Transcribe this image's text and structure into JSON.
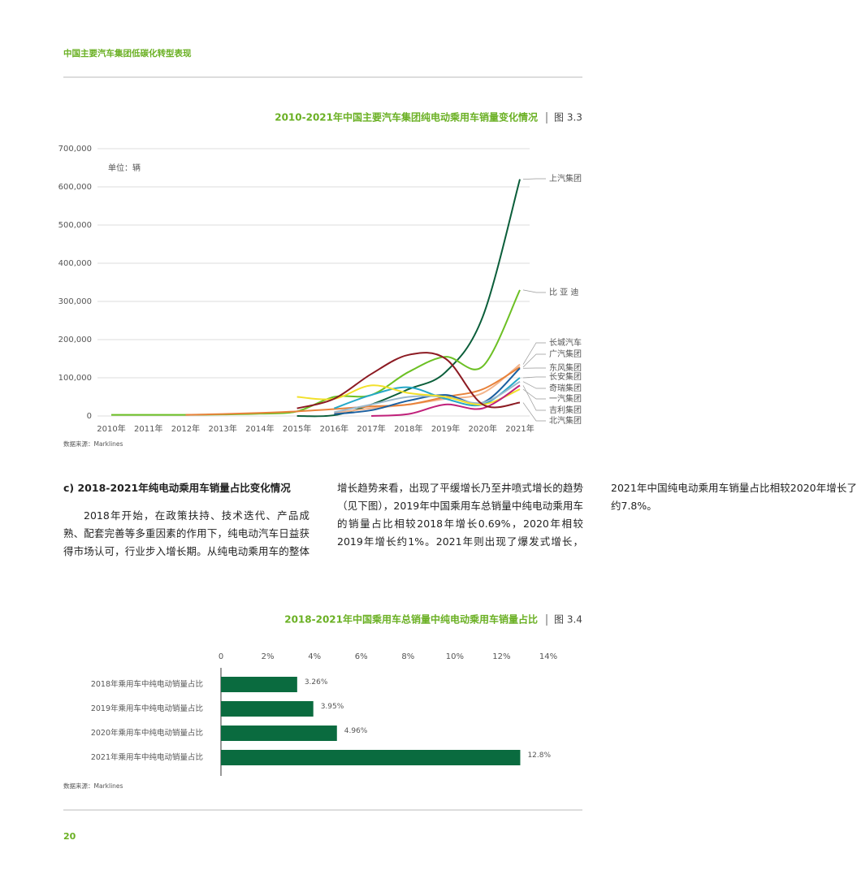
{
  "header": {
    "title": "中国主要汽车集团低碳化转型表现"
  },
  "figures": [
    {
      "title": "2010-2021年中国主要汽车集团纯电动乘用车销量变化情况",
      "number": "图 3.3",
      "source": "数据来源：Marklines"
    },
    {
      "title": "2018-2021年中国乘用车总销量中纯电动乘用车销量占比",
      "number": "图 3.4",
      "source": "数据来源：Marklines"
    }
  ],
  "section": {
    "heading": "c) 2018-2021年纯电动乘用车销量占比变化情况",
    "text": "2018年开始，在政策扶持、技术迭代、产品成熟、配套完善等多重因素的作用下，纯电动汽车日益获得市场认可，行业步入增长期。从纯电动乘用车的整体增长趋势来看，出现了平缓增长乃至井喷式增长的趋势（见下图），2019年中国乘用车总销量中纯电动乘用车的销量占比相较2018年增长0.69%，2020年相较2019年增长约1%。2021年则出现了爆发式增长，2021年中国纯电动乘用车销量占比相较2020年增长了约7.8%。"
  },
  "page_number": "20",
  "chart_data": [
    {
      "type": "line",
      "annotation": "单位：辆",
      "categories": [
        "2010年",
        "2011年",
        "2012年",
        "2013年",
        "2014年",
        "2015年",
        "2016年",
        "2017年",
        "2018年",
        "2019年",
        "2020年",
        "2021年"
      ],
      "ylim": [
        0,
        700000
      ],
      "yticks": [
        0,
        {
          "value": 100000,
          "label": "100,000"
        },
        {
          "value": 200000,
          "label": "200,000"
        },
        {
          "value": 300000,
          "label": "300,000"
        },
        {
          "value": 400000,
          "label": "400,000"
        },
        {
          "value": 500000,
          "label": "500,000"
        },
        {
          "value": 600000,
          "label": "600,000"
        },
        {
          "value": 700000,
          "label": "700,000"
        }
      ],
      "grid": true,
      "series": [
        {
          "name": "上汽集团",
          "color": "#0b5e3a",
          "values": [
            null,
            null,
            null,
            null,
            null,
            0,
            2000,
            30000,
            70000,
            115000,
            260000,
            620000
          ]
        },
        {
          "name": "比 亚 迪",
          "color": "#6cc024",
          "values": [
            3000,
            3000,
            3000,
            4000,
            6000,
            12000,
            50000,
            55000,
            115000,
            155000,
            130000,
            330000
          ]
        },
        {
          "name": "长城汽车",
          "color": "#f2b48c",
          "values": [
            null,
            null,
            null,
            null,
            null,
            null,
            8000,
            20000,
            30000,
            45000,
            60000,
            135000
          ]
        },
        {
          "name": "广汽集团",
          "color": "#e8823a",
          "values": [
            null,
            null,
            3000,
            5000,
            8000,
            12000,
            18000,
            25000,
            30000,
            50000,
            70000,
            128000
          ]
        },
        {
          "name": "东风集团",
          "color": "#1a5fa0",
          "values": [
            null,
            null,
            null,
            null,
            null,
            null,
            5000,
            15000,
            40000,
            55000,
            35000,
            125000
          ]
        },
        {
          "name": "长安集团",
          "color": "#25a8c8",
          "values": [
            null,
            null,
            null,
            null,
            null,
            null,
            20000,
            55000,
            75000,
            45000,
            30000,
            100000
          ]
        },
        {
          "name": "奇瑞集团",
          "color": "#9bb8cc",
          "values": [
            null,
            null,
            null,
            null,
            null,
            null,
            10000,
            30000,
            50000,
            50000,
            35000,
            90000
          ]
        },
        {
          "name": "一汽集团",
          "color": "#f2e02a",
          "values": [
            null,
            null,
            null,
            null,
            null,
            50000,
            45000,
            80000,
            60000,
            50000,
            30000,
            70000
          ]
        },
        {
          "name": "吉利集团",
          "color": "#c0207a",
          "values": [
            null,
            null,
            null,
            null,
            null,
            null,
            null,
            0,
            5000,
            30000,
            20000,
            80000
          ]
        },
        {
          "name": "北汽集团",
          "color": "#8c1a22",
          "values": [
            null,
            null,
            null,
            null,
            null,
            20000,
            45000,
            110000,
            160000,
            150000,
            30000,
            35000
          ]
        }
      ]
    },
    {
      "type": "hbar",
      "categories": [
        "2018年乘用车中纯电动销量占比",
        "2019年乘用车中纯电动销量占比",
        "2020年乘用车中纯电动销量占比",
        "2021年乘用车中纯电动销量占比"
      ],
      "values": [
        3.26,
        3.95,
        4.96,
        12.8
      ],
      "value_labels": [
        "3.26%",
        "3.95%",
        "4.96%",
        "12.8%"
      ],
      "color": "#0a6b3f",
      "xlim": [
        0,
        14
      ],
      "xticks": [
        0,
        {
          "value": 2,
          "label": "2%"
        },
        {
          "value": 4,
          "label": "4%"
        },
        {
          "value": 6,
          "label": "6%"
        },
        {
          "value": 8,
          "label": "8%"
        },
        {
          "value": 10,
          "label": "10%"
        },
        {
          "value": 12,
          "label": "12%"
        },
        {
          "value": 14,
          "label": "14%"
        }
      ]
    }
  ]
}
